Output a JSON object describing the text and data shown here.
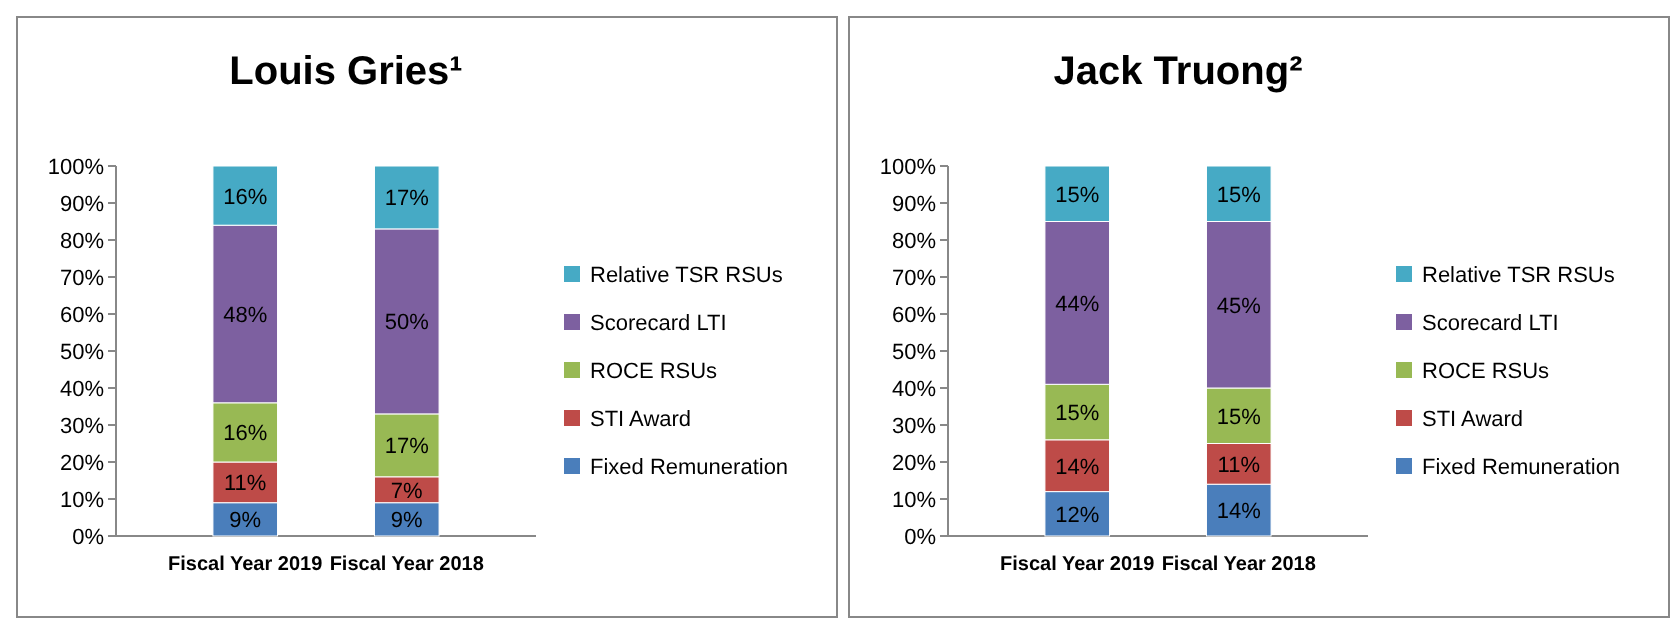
{
  "chart_data": [
    {
      "type": "bar",
      "title": "Louis Gries¹",
      "stacked": true,
      "legend": "right",
      "categories": [
        "Fiscal Year 2019",
        "Fiscal Year 2018"
      ],
      "ylim": [
        0,
        100
      ],
      "yticks": [
        {
          "value": 0,
          "label": "0%"
        },
        {
          "value": 10,
          "label": "10%"
        },
        {
          "value": 20,
          "label": "20%"
        },
        {
          "value": 30,
          "label": "30%"
        },
        {
          "value": 40,
          "label": "40%"
        },
        {
          "value": 50,
          "label": "50%"
        },
        {
          "value": 60,
          "label": "60%"
        },
        {
          "value": 70,
          "label": "70%"
        },
        {
          "value": 80,
          "label": "80%"
        },
        {
          "value": 90,
          "label": "90%"
        },
        {
          "value": 100,
          "label": "100%"
        }
      ],
      "series": [
        {
          "name": "Fixed Remuneration",
          "color": "#4a7ebb",
          "values": [
            9,
            9
          ],
          "value_labels": [
            "9%",
            "9%"
          ]
        },
        {
          "name": "STI Award",
          "color": "#be4b48",
          "values": [
            11,
            7
          ],
          "value_labels": [
            "11%",
            "7%"
          ]
        },
        {
          "name": "ROCE RSUs",
          "color": "#98b954",
          "values": [
            16,
            17
          ],
          "value_labels": [
            "16%",
            "17%"
          ]
        },
        {
          "name": "Scorecard LTI",
          "color": "#7d60a0",
          "values": [
            48,
            50
          ],
          "value_labels": [
            "48%",
            "50%"
          ]
        },
        {
          "name": "Relative TSR RSUs",
          "color": "#46aac5",
          "values": [
            16,
            17
          ],
          "value_labels": [
            "16%",
            "17%"
          ]
        }
      ]
    },
    {
      "type": "bar",
      "title": "Jack Truong²",
      "stacked": true,
      "legend": "right",
      "categories": [
        "Fiscal Year 2019",
        "Fiscal Year 2018"
      ],
      "ylim": [
        0,
        100
      ],
      "yticks": [
        {
          "value": 0,
          "label": "0%"
        },
        {
          "value": 10,
          "label": "10%"
        },
        {
          "value": 20,
          "label": "20%"
        },
        {
          "value": 30,
          "label": "30%"
        },
        {
          "value": 40,
          "label": "40%"
        },
        {
          "value": 50,
          "label": "50%"
        },
        {
          "value": 60,
          "label": "60%"
        },
        {
          "value": 70,
          "label": "70%"
        },
        {
          "value": 80,
          "label": "80%"
        },
        {
          "value": 90,
          "label": "90%"
        },
        {
          "value": 100,
          "label": "100%"
        }
      ],
      "series": [
        {
          "name": "Fixed Remuneration",
          "color": "#4a7ebb",
          "values": [
            12,
            14
          ],
          "value_labels": [
            "12%",
            "14%"
          ]
        },
        {
          "name": "STI Award",
          "color": "#be4b48",
          "values": [
            14,
            11
          ],
          "value_labels": [
            "14%",
            "11%"
          ]
        },
        {
          "name": "ROCE RSUs",
          "color": "#98b954",
          "values": [
            15,
            15
          ],
          "value_labels": [
            "15%",
            "15%"
          ]
        },
        {
          "name": "Scorecard LTI",
          "color": "#7d60a0",
          "values": [
            44,
            45
          ],
          "value_labels": [
            "44%",
            "45%"
          ]
        },
        {
          "name": "Relative TSR RSUs",
          "color": "#46aac5",
          "values": [
            15,
            15
          ],
          "value_labels": [
            "15%",
            "15%"
          ]
        }
      ]
    }
  ]
}
